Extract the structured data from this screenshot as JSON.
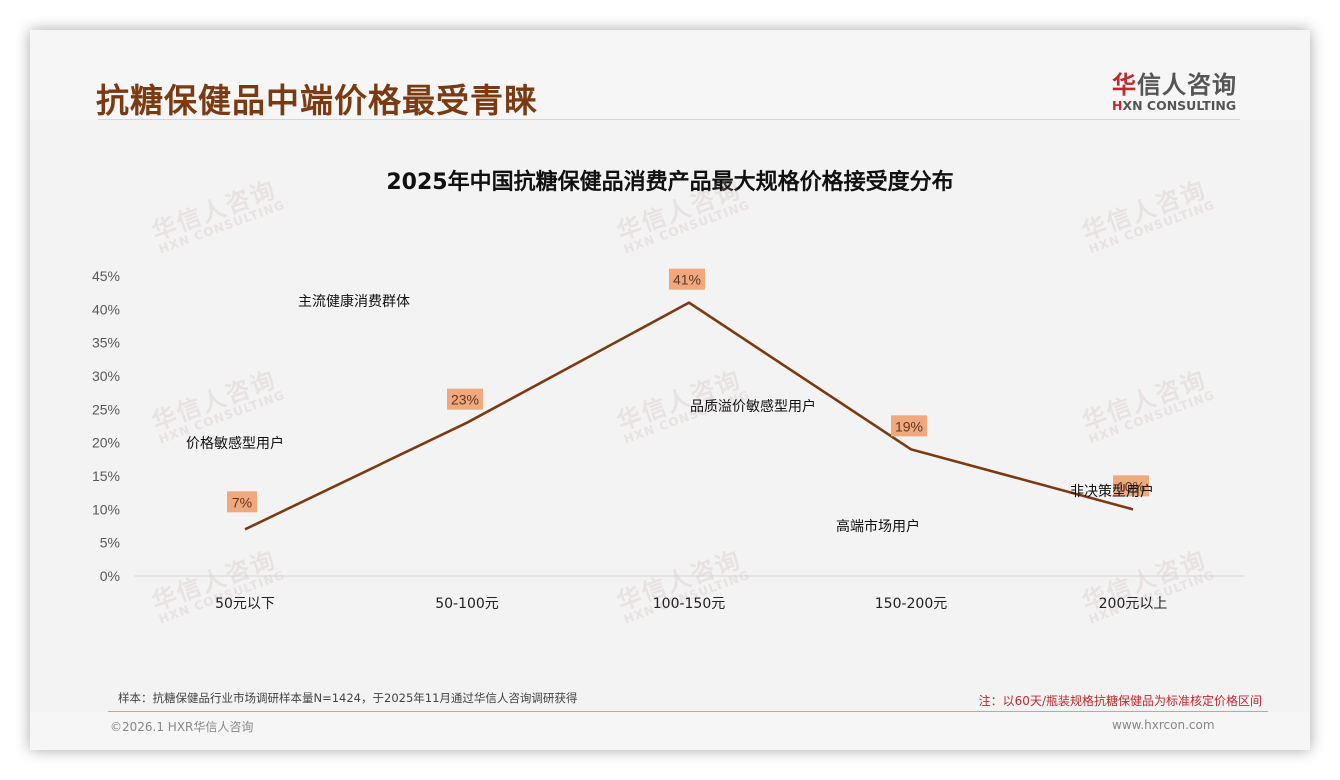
{
  "header": {
    "title": "抗糖保健品中端价格最受青睐",
    "logo": {
      "cn_accent": "华",
      "cn_rest": "信人咨询",
      "en_accent": "H",
      "en_rest": "XN CONSULTING"
    }
  },
  "watermark": {
    "cn": "华信人咨询",
    "en": "HXN CONSULTING"
  },
  "chart_data": {
    "type": "line",
    "title": "2025年中国抗糖保健品消费产品最大规格价格接受度分布",
    "categories": [
      "50元以下",
      "50-100元",
      "100-150元",
      "150-200元",
      "200元以上"
    ],
    "values": [
      7,
      23,
      41,
      19,
      10
    ],
    "data_labels": [
      "7%",
      "23%",
      "41%",
      "19%",
      "10%"
    ],
    "xlabel": "",
    "ylabel": "",
    "ylim": [
      0,
      45
    ],
    "yticks": [
      "0%",
      "5%",
      "10%",
      "15%",
      "20%",
      "25%",
      "30%",
      "35%",
      "40%",
      "45%"
    ],
    "grid": false,
    "legend": "none",
    "line_color": "#7b3a12",
    "label_bg_color": "#f0a87c",
    "annotations": [
      {
        "text": "价格敏感型用户",
        "category": "50元以下"
      },
      {
        "text": "主流健康消费群体",
        "category": "50-100元"
      },
      {
        "text": "品质溢价敏感型用户",
        "category": "100-150元"
      },
      {
        "text": "高端市场用户",
        "category": "150-200元"
      },
      {
        "text": "非决策型用户",
        "category": "200元以上"
      }
    ]
  },
  "footer": {
    "source_note": "样本：抗糖保健品行业市场调研样本量N=1424，于2025年11月通过华信人咨询调研获得",
    "price_note": "注：以60天/瓶装规格抗糖保健品为标准核定价格区间",
    "copyright": "©2026.1 HXR华信人咨询",
    "website": "www.hxrcon.com"
  }
}
